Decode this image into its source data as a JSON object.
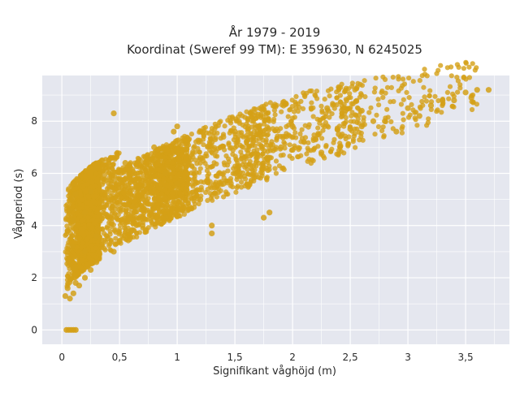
{
  "chart_data": {
    "type": "scatter",
    "title": [
      "År 1979 - 2019",
      "Koordinat (Sweref 99 TM): E 359630, N 6245025"
    ],
    "xlabel": "Signifikant våghöjd (m)",
    "ylabel": "Vågperiod (s)",
    "xlim": [
      -0.17,
      3.88
    ],
    "ylim": [
      -0.55,
      9.75
    ],
    "x_ticks": [
      0,
      0.5,
      1,
      1.5,
      2,
      2.5,
      3,
      3.5
    ],
    "x_tick_labels": [
      "0",
      "0,5",
      "1",
      "1,5",
      "2",
      "2,5",
      "3",
      "3,5"
    ],
    "y_ticks": [
      0,
      2,
      4,
      6,
      8
    ],
    "y_tick_labels": [
      "0",
      "2",
      "4",
      "6",
      "8"
    ],
    "grid": true,
    "marker_color": "#D4A017",
    "plot_background": "#E5E7EF",
    "grid_color": "#FFFFFF",
    "series": [
      {
        "values": [
          [
            0.03,
            1.3
          ],
          [
            0.05,
            1.6
          ],
          [
            0.07,
            1.2
          ],
          [
            0.08,
            2.0
          ],
          [
            0.1,
            1.4
          ],
          [
            0.12,
            1.8
          ],
          [
            0.06,
            2.6
          ],
          [
            0.09,
            3.2
          ],
          [
            0.1,
            4.2
          ],
          [
            0.08,
            5.0
          ],
          [
            0.1,
            5.6
          ],
          [
            0.12,
            5.2
          ],
          [
            0.05,
            3.8
          ],
          [
            0.07,
            4.6
          ],
          [
            0.11,
            2.4
          ],
          [
            0.15,
            1.7
          ],
          [
            0.2,
            2.0
          ],
          [
            0.2,
            3.0
          ],
          [
            0.25,
            2.3
          ],
          [
            0.3,
            2.6
          ],
          [
            0.3,
            3.6
          ],
          [
            0.2,
            4.5
          ],
          [
            0.25,
            5.3
          ],
          [
            0.3,
            6.2
          ],
          [
            0.35,
            6.5
          ],
          [
            0.4,
            3.5
          ],
          [
            0.45,
            3.0
          ],
          [
            0.5,
            3.4
          ],
          [
            0.5,
            4.6
          ],
          [
            0.5,
            5.8
          ],
          [
            0.45,
            8.3
          ],
          [
            0.55,
            6.4
          ],
          [
            0.6,
            3.8
          ],
          [
            0.7,
            4.0
          ],
          [
            0.7,
            5.4
          ],
          [
            0.75,
            6.6
          ],
          [
            0.8,
            7.0
          ],
          [
            0.9,
            4.3
          ],
          [
            0.9,
            6.0
          ],
          [
            1.0,
            4.6
          ],
          [
            1.0,
            5.6
          ],
          [
            1.0,
            6.8
          ],
          [
            1.0,
            7.8
          ],
          [
            0.97,
            7.6
          ],
          [
            1.1,
            6.4
          ],
          [
            1.2,
            5.0
          ],
          [
            1.2,
            6.6
          ],
          [
            1.3,
            3.7
          ],
          [
            1.3,
            4.0
          ],
          [
            1.3,
            7.2
          ],
          [
            1.4,
            5.6
          ],
          [
            1.4,
            7.4
          ],
          [
            1.5,
            6.0
          ],
          [
            1.5,
            7.6
          ],
          [
            1.6,
            6.3
          ],
          [
            1.75,
            4.3
          ],
          [
            1.8,
            4.5
          ],
          [
            1.7,
            7.8
          ],
          [
            1.8,
            6.6
          ],
          [
            1.9,
            7.0
          ],
          [
            2.0,
            6.9
          ],
          [
            2.0,
            7.8
          ],
          [
            2.1,
            7.2
          ],
          [
            2.2,
            7.3
          ],
          [
            2.25,
            6.8
          ],
          [
            2.3,
            8.5
          ],
          [
            2.4,
            7.5
          ],
          [
            2.4,
            9.3
          ],
          [
            2.5,
            7.7
          ],
          [
            2.6,
            7.8
          ],
          [
            2.6,
            8.4
          ],
          [
            2.7,
            8.0
          ],
          [
            2.8,
            8.0
          ],
          [
            2.9,
            7.6
          ],
          [
            3.0,
            8.5
          ],
          [
            3.1,
            8.2
          ],
          [
            3.2,
            8.6
          ],
          [
            3.3,
            8.8
          ],
          [
            3.4,
            8.8
          ],
          [
            3.5,
            9.1
          ],
          [
            3.55,
            8.9
          ],
          [
            3.6,
            9.2
          ],
          [
            3.7,
            9.2
          ]
        ]
      }
    ],
    "zero_period_points": [
      [
        0.04,
        0
      ],
      [
        0.06,
        0
      ],
      [
        0.08,
        0
      ],
      [
        0.1,
        0
      ],
      [
        0.12,
        0
      ]
    ]
  }
}
